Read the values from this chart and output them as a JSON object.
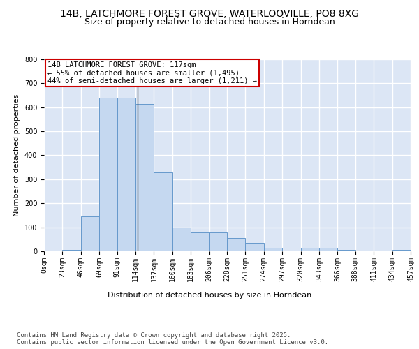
{
  "title_line1": "14B, LATCHMORE FOREST GROVE, WATERLOOVILLE, PO8 8XG",
  "title_line2": "Size of property relative to detached houses in Horndean",
  "xlabel": "Distribution of detached houses by size in Horndean",
  "ylabel": "Number of detached properties",
  "bg_color": "#dce6f5",
  "bar_color": "#c5d8f0",
  "bar_edge_color": "#6699cc",
  "grid_color": "#ffffff",
  "property_line_color": "#555555",
  "bins": [
    0,
    23,
    46,
    69,
    91,
    114,
    137,
    160,
    183,
    206,
    228,
    251,
    274,
    297,
    320,
    343,
    366,
    388,
    411,
    434,
    457
  ],
  "counts": [
    2,
    5,
    145,
    640,
    640,
    615,
    330,
    100,
    80,
    80,
    55,
    35,
    15,
    0,
    15,
    15,
    5,
    0,
    0,
    5
  ],
  "property_size": 117,
  "annotation_text": "14B LATCHMORE FOREST GROVE: 117sqm\n← 55% of detached houses are smaller (1,495)\n44% of semi-detached houses are larger (1,211) →",
  "ylim": [
    0,
    800
  ],
  "yticks": [
    0,
    100,
    200,
    300,
    400,
    500,
    600,
    700,
    800
  ],
  "footnote": "Contains HM Land Registry data © Crown copyright and database right 2025.\nContains public sector information licensed under the Open Government Licence v3.0.",
  "title_fontsize": 10,
  "subtitle_fontsize": 9,
  "axis_label_fontsize": 8,
  "tick_fontsize": 7,
  "annotation_fontsize": 7.5,
  "footnote_fontsize": 6.5
}
